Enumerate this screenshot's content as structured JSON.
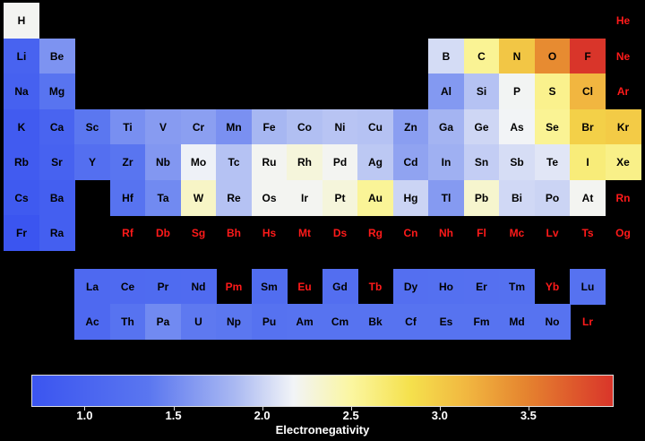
{
  "chart_data": {
    "type": "heatmap",
    "title": "",
    "colorbar": {
      "label": "Electronegativity",
      "min": 0.7,
      "max": 3.98,
      "ticks": [
        "1.0",
        "1.5",
        "2.0",
        "2.5",
        "3.0",
        "3.5"
      ],
      "tick_values": [
        1.0,
        1.5,
        2.0,
        2.5,
        3.0,
        3.5
      ],
      "colors": [
        "#3b55f0",
        "#f2f4f7",
        "#f5e14d",
        "#d9352a"
      ]
    },
    "no_data_color": "#ff1a1a",
    "elements": [
      {
        "symbol": "H",
        "row": 1,
        "col": 1,
        "value": 2.2
      },
      {
        "symbol": "He",
        "row": 1,
        "col": 18,
        "value": null
      },
      {
        "symbol": "Li",
        "row": 2,
        "col": 1,
        "value": 0.98
      },
      {
        "symbol": "Be",
        "row": 2,
        "col": 2,
        "value": 1.57
      },
      {
        "symbol": "B",
        "row": 2,
        "col": 13,
        "value": 2.04
      },
      {
        "symbol": "C",
        "row": 2,
        "col": 14,
        "value": 2.55
      },
      {
        "symbol": "N",
        "row": 2,
        "col": 15,
        "value": 3.04
      },
      {
        "symbol": "O",
        "row": 2,
        "col": 16,
        "value": 3.44
      },
      {
        "symbol": "F",
        "row": 2,
        "col": 17,
        "value": 3.98
      },
      {
        "symbol": "Ne",
        "row": 2,
        "col": 18,
        "value": null
      },
      {
        "symbol": "Na",
        "row": 3,
        "col": 1,
        "value": 0.93
      },
      {
        "symbol": "Mg",
        "row": 3,
        "col": 2,
        "value": 1.31
      },
      {
        "symbol": "Al",
        "row": 3,
        "col": 13,
        "value": 1.61
      },
      {
        "symbol": "Si",
        "row": 3,
        "col": 14,
        "value": 1.9
      },
      {
        "symbol": "P",
        "row": 3,
        "col": 15,
        "value": 2.19
      },
      {
        "symbol": "S",
        "row": 3,
        "col": 16,
        "value": 2.58
      },
      {
        "symbol": "Cl",
        "row": 3,
        "col": 17,
        "value": 3.16
      },
      {
        "symbol": "Ar",
        "row": 3,
        "col": 18,
        "value": null
      },
      {
        "symbol": "K",
        "row": 4,
        "col": 1,
        "value": 0.82
      },
      {
        "symbol": "Ca",
        "row": 4,
        "col": 2,
        "value": 1.0
      },
      {
        "symbol": "Sc",
        "row": 4,
        "col": 3,
        "value": 1.36
      },
      {
        "symbol": "Ti",
        "row": 4,
        "col": 4,
        "value": 1.54
      },
      {
        "symbol": "V",
        "row": 4,
        "col": 5,
        "value": 1.63
      },
      {
        "symbol": "Cr",
        "row": 4,
        "col": 6,
        "value": 1.66
      },
      {
        "symbol": "Mn",
        "row": 4,
        "col": 7,
        "value": 1.55
      },
      {
        "symbol": "Fe",
        "row": 4,
        "col": 8,
        "value": 1.83
      },
      {
        "symbol": "Co",
        "row": 4,
        "col": 9,
        "value": 1.88
      },
      {
        "symbol": "Ni",
        "row": 4,
        "col": 10,
        "value": 1.91
      },
      {
        "symbol": "Cu",
        "row": 4,
        "col": 11,
        "value": 1.9
      },
      {
        "symbol": "Zn",
        "row": 4,
        "col": 12,
        "value": 1.65
      },
      {
        "symbol": "Ga",
        "row": 4,
        "col": 13,
        "value": 1.81
      },
      {
        "symbol": "Ge",
        "row": 4,
        "col": 14,
        "value": 2.01
      },
      {
        "symbol": "As",
        "row": 4,
        "col": 15,
        "value": 2.18
      },
      {
        "symbol": "Se",
        "row": 4,
        "col": 16,
        "value": 2.55
      },
      {
        "symbol": "Br",
        "row": 4,
        "col": 17,
        "value": 2.96
      },
      {
        "symbol": "Kr",
        "row": 4,
        "col": 18,
        "value": 3.0
      },
      {
        "symbol": "Rb",
        "row": 5,
        "col": 1,
        "value": 0.82
      },
      {
        "symbol": "Sr",
        "row": 5,
        "col": 2,
        "value": 0.95
      },
      {
        "symbol": "Y",
        "row": 5,
        "col": 3,
        "value": 1.22
      },
      {
        "symbol": "Zr",
        "row": 5,
        "col": 4,
        "value": 1.33
      },
      {
        "symbol": "Nb",
        "row": 5,
        "col": 5,
        "value": 1.6
      },
      {
        "symbol": "Mo",
        "row": 5,
        "col": 6,
        "value": 2.16
      },
      {
        "symbol": "Tc",
        "row": 5,
        "col": 7,
        "value": 1.9
      },
      {
        "symbol": "Ru",
        "row": 5,
        "col": 8,
        "value": 2.2
      },
      {
        "symbol": "Rh",
        "row": 5,
        "col": 9,
        "value": 2.28
      },
      {
        "symbol": "Pd",
        "row": 5,
        "col": 10,
        "value": 2.2
      },
      {
        "symbol": "Ag",
        "row": 5,
        "col": 11,
        "value": 1.93
      },
      {
        "symbol": "Cd",
        "row": 5,
        "col": 12,
        "value": 1.69
      },
      {
        "symbol": "In",
        "row": 5,
        "col": 13,
        "value": 1.78
      },
      {
        "symbol": "Sn",
        "row": 5,
        "col": 14,
        "value": 1.96
      },
      {
        "symbol": "Sb",
        "row": 5,
        "col": 15,
        "value": 2.05
      },
      {
        "symbol": "Te",
        "row": 5,
        "col": 16,
        "value": 2.1
      },
      {
        "symbol": "I",
        "row": 5,
        "col": 17,
        "value": 2.66
      },
      {
        "symbol": "Xe",
        "row": 5,
        "col": 18,
        "value": 2.6
      },
      {
        "symbol": "Cs",
        "row": 6,
        "col": 1,
        "value": 0.79
      },
      {
        "symbol": "Ba",
        "row": 6,
        "col": 2,
        "value": 0.89
      },
      {
        "symbol": "Hf",
        "row": 6,
        "col": 4,
        "value": 1.3
      },
      {
        "symbol": "Ta",
        "row": 6,
        "col": 5,
        "value": 1.5
      },
      {
        "symbol": "W",
        "row": 6,
        "col": 6,
        "value": 2.36
      },
      {
        "symbol": "Re",
        "row": 6,
        "col": 7,
        "value": 1.9
      },
      {
        "symbol": "Os",
        "row": 6,
        "col": 8,
        "value": 2.2
      },
      {
        "symbol": "Ir",
        "row": 6,
        "col": 9,
        "value": 2.2
      },
      {
        "symbol": "Pt",
        "row": 6,
        "col": 10,
        "value": 2.28
      },
      {
        "symbol": "Au",
        "row": 6,
        "col": 11,
        "value": 2.54
      },
      {
        "symbol": "Hg",
        "row": 6,
        "col": 12,
        "value": 2.0
      },
      {
        "symbol": "Tl",
        "row": 6,
        "col": 13,
        "value": 1.62
      },
      {
        "symbol": "Pb",
        "row": 6,
        "col": 14,
        "value": 2.33
      },
      {
        "symbol": "Bi",
        "row": 6,
        "col": 15,
        "value": 2.02
      },
      {
        "symbol": "Po",
        "row": 6,
        "col": 16,
        "value": 2.0
      },
      {
        "symbol": "At",
        "row": 6,
        "col": 17,
        "value": 2.2
      },
      {
        "symbol": "Rn",
        "row": 6,
        "col": 18,
        "value": null
      },
      {
        "symbol": "Fr",
        "row": 7,
        "col": 1,
        "value": 0.7
      },
      {
        "symbol": "Ra",
        "row": 7,
        "col": 2,
        "value": 0.9
      },
      {
        "symbol": "Rf",
        "row": 7,
        "col": 4,
        "value": null
      },
      {
        "symbol": "Db",
        "row": 7,
        "col": 5,
        "value": null
      },
      {
        "symbol": "Sg",
        "row": 7,
        "col": 6,
        "value": null
      },
      {
        "symbol": "Bh",
        "row": 7,
        "col": 7,
        "value": null
      },
      {
        "symbol": "Hs",
        "row": 7,
        "col": 8,
        "value": null
      },
      {
        "symbol": "Mt",
        "row": 7,
        "col": 9,
        "value": null
      },
      {
        "symbol": "Ds",
        "row": 7,
        "col": 10,
        "value": null
      },
      {
        "symbol": "Rg",
        "row": 7,
        "col": 11,
        "value": null
      },
      {
        "symbol": "Cn",
        "row": 7,
        "col": 12,
        "value": null
      },
      {
        "symbol": "Nh",
        "row": 7,
        "col": 13,
        "value": null
      },
      {
        "symbol": "Fl",
        "row": 7,
        "col": 14,
        "value": null
      },
      {
        "symbol": "Mc",
        "row": 7,
        "col": 15,
        "value": null
      },
      {
        "symbol": "Lv",
        "row": 7,
        "col": 16,
        "value": null
      },
      {
        "symbol": "Ts",
        "row": 7,
        "col": 17,
        "value": null
      },
      {
        "symbol": "Og",
        "row": 7,
        "col": 18,
        "value": null
      },
      {
        "symbol": "La",
        "row": 9,
        "col": 3,
        "value": 1.1
      },
      {
        "symbol": "Ce",
        "row": 9,
        "col": 4,
        "value": 1.12
      },
      {
        "symbol": "Pr",
        "row": 9,
        "col": 5,
        "value": 1.13
      },
      {
        "symbol": "Nd",
        "row": 9,
        "col": 6,
        "value": 1.14
      },
      {
        "symbol": "Pm",
        "row": 9,
        "col": 7,
        "value": null
      },
      {
        "symbol": "Sm",
        "row": 9,
        "col": 8,
        "value": 1.17
      },
      {
        "symbol": "Eu",
        "row": 9,
        "col": 9,
        "value": null
      },
      {
        "symbol": "Gd",
        "row": 9,
        "col": 10,
        "value": 1.2
      },
      {
        "symbol": "Tb",
        "row": 9,
        "col": 11,
        "value": null
      },
      {
        "symbol": "Dy",
        "row": 9,
        "col": 12,
        "value": 1.22
      },
      {
        "symbol": "Ho",
        "row": 9,
        "col": 13,
        "value": 1.23
      },
      {
        "symbol": "Er",
        "row": 9,
        "col": 14,
        "value": 1.24
      },
      {
        "symbol": "Tm",
        "row": 9,
        "col": 15,
        "value": 1.25
      },
      {
        "symbol": "Yb",
        "row": 9,
        "col": 16,
        "value": null
      },
      {
        "symbol": "Lu",
        "row": 9,
        "col": 17,
        "value": 1.27
      },
      {
        "symbol": "Ac",
        "row": 10,
        "col": 3,
        "value": 1.1
      },
      {
        "symbol": "Th",
        "row": 10,
        "col": 4,
        "value": 1.3
      },
      {
        "symbol": "Pa",
        "row": 10,
        "col": 5,
        "value": 1.5
      },
      {
        "symbol": "U",
        "row": 10,
        "col": 6,
        "value": 1.38
      },
      {
        "symbol": "Np",
        "row": 10,
        "col": 7,
        "value": 1.36
      },
      {
        "symbol": "Pu",
        "row": 10,
        "col": 8,
        "value": 1.28
      },
      {
        "symbol": "Am",
        "row": 10,
        "col": 9,
        "value": 1.3
      },
      {
        "symbol": "Cm",
        "row": 10,
        "col": 10,
        "value": 1.3
      },
      {
        "symbol": "Bk",
        "row": 10,
        "col": 11,
        "value": 1.3
      },
      {
        "symbol": "Cf",
        "row": 10,
        "col": 12,
        "value": 1.3
      },
      {
        "symbol": "Es",
        "row": 10,
        "col": 13,
        "value": 1.3
      },
      {
        "symbol": "Fm",
        "row": 10,
        "col": 14,
        "value": 1.3
      },
      {
        "symbol": "Md",
        "row": 10,
        "col": 15,
        "value": 1.3
      },
      {
        "symbol": "No",
        "row": 10,
        "col": 16,
        "value": 1.3
      },
      {
        "symbol": "Lr",
        "row": 10,
        "col": 17,
        "value": null
      }
    ]
  }
}
